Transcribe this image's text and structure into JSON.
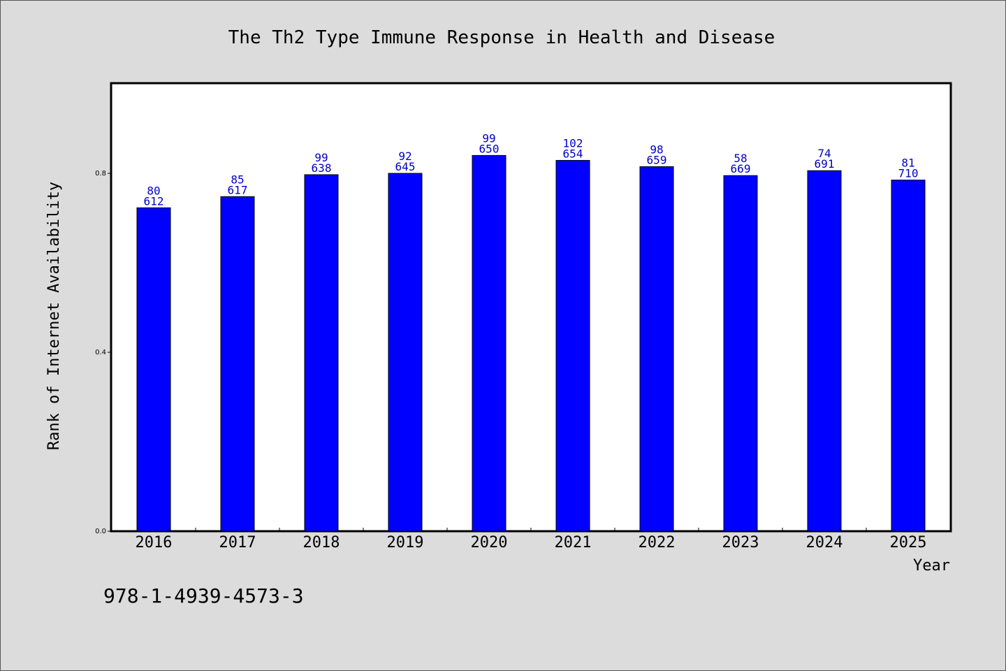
{
  "chart_data": {
    "type": "bar",
    "title": "The Th2 Type Immune Response in Health and Disease",
    "xlabel": "Year",
    "ylabel": "Rank of Internet Availability",
    "categories": [
      "2016",
      "2017",
      "2018",
      "2019",
      "2020",
      "2021",
      "2022",
      "2023",
      "2024",
      "2025"
    ],
    "values": [
      0.723,
      0.748,
      0.797,
      0.8,
      0.84,
      0.829,
      0.815,
      0.795,
      0.806,
      0.785
    ],
    "bar_labels": [
      [
        "80",
        "612"
      ],
      [
        "85",
        "617"
      ],
      [
        "99",
        "638"
      ],
      [
        "92",
        "645"
      ],
      [
        "99",
        "650"
      ],
      [
        "102",
        "654"
      ],
      [
        "98",
        "659"
      ],
      [
        "58",
        "669"
      ],
      [
        "74",
        "691"
      ],
      [
        "81",
        "710"
      ]
    ],
    "yticks": [
      {
        "value": 0.0,
        "label": "0.0"
      },
      {
        "value": 0.4,
        "label": "0.4"
      },
      {
        "value": 0.8,
        "label": "0.8"
      }
    ],
    "ylim": [
      0,
      1.0
    ],
    "grid": false,
    "bar_color": "#0000ff",
    "label_color": "#0000c8"
  },
  "footer": {
    "isbn": "978-1-4939-4573-3"
  }
}
